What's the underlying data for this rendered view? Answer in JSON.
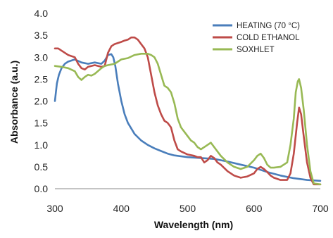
{
  "chart_data": {
    "type": "line",
    "title": "",
    "xlabel": "Wavelength (nm)",
    "ylabel": "Absorbance (a.u.)",
    "xlim": [
      300,
      700
    ],
    "ylim": [
      0,
      4.0
    ],
    "x_ticks": [
      300,
      400,
      500,
      600,
      700
    ],
    "y_ticks": [
      "0.0",
      "0.5",
      "1.0",
      "1.5",
      "2.0",
      "2.5",
      "3.0",
      "3.5",
      "4.0"
    ],
    "grid": false,
    "legend_position": "top-right",
    "series": [
      {
        "name": "HEATING (70 °C)",
        "color": "#4a7ebb",
        "points": [
          [
            300,
            2.0
          ],
          [
            303,
            2.4
          ],
          [
            306,
            2.6
          ],
          [
            310,
            2.75
          ],
          [
            315,
            2.85
          ],
          [
            320,
            2.9
          ],
          [
            330,
            2.95
          ],
          [
            340,
            2.88
          ],
          [
            350,
            2.85
          ],
          [
            360,
            2.88
          ],
          [
            370,
            2.85
          ],
          [
            375,
            2.92
          ],
          [
            380,
            3.05
          ],
          [
            385,
            3.07
          ],
          [
            388,
            3.0
          ],
          [
            391,
            2.8
          ],
          [
            395,
            2.4
          ],
          [
            400,
            2.0
          ],
          [
            405,
            1.7
          ],
          [
            410,
            1.5
          ],
          [
            420,
            1.25
          ],
          [
            430,
            1.1
          ],
          [
            440,
            1.0
          ],
          [
            450,
            0.92
          ],
          [
            460,
            0.86
          ],
          [
            470,
            0.8
          ],
          [
            480,
            0.76
          ],
          [
            500,
            0.72
          ],
          [
            520,
            0.7
          ],
          [
            540,
            0.68
          ],
          [
            560,
            0.62
          ],
          [
            580,
            0.55
          ],
          [
            600,
            0.48
          ],
          [
            620,
            0.38
          ],
          [
            640,
            0.3
          ],
          [
            660,
            0.24
          ],
          [
            680,
            0.2
          ],
          [
            700,
            0.18
          ]
        ]
      },
      {
        "name": "COLD ETHANOL",
        "color": "#be4b48",
        "points": [
          [
            300,
            3.2
          ],
          [
            305,
            3.2
          ],
          [
            310,
            3.15
          ],
          [
            320,
            3.05
          ],
          [
            330,
            3.0
          ],
          [
            335,
            2.85
          ],
          [
            340,
            2.75
          ],
          [
            345,
            2.72
          ],
          [
            350,
            2.78
          ],
          [
            360,
            2.82
          ],
          [
            370,
            2.78
          ],
          [
            375,
            2.8
          ],
          [
            380,
            3.1
          ],
          [
            385,
            3.25
          ],
          [
            390,
            3.3
          ],
          [
            400,
            3.35
          ],
          [
            405,
            3.38
          ],
          [
            410,
            3.4
          ],
          [
            415,
            3.45
          ],
          [
            420,
            3.45
          ],
          [
            425,
            3.4
          ],
          [
            430,
            3.3
          ],
          [
            435,
            3.2
          ],
          [
            440,
            3.0
          ],
          [
            445,
            2.6
          ],
          [
            450,
            2.2
          ],
          [
            455,
            1.9
          ],
          [
            460,
            1.7
          ],
          [
            465,
            1.55
          ],
          [
            470,
            1.5
          ],
          [
            475,
            1.4
          ],
          [
            480,
            1.1
          ],
          [
            485,
            0.9
          ],
          [
            490,
            0.85
          ],
          [
            500,
            0.78
          ],
          [
            510,
            0.75
          ],
          [
            515,
            0.72
          ],
          [
            520,
            0.72
          ],
          [
            525,
            0.6
          ],
          [
            530,
            0.65
          ],
          [
            535,
            0.75
          ],
          [
            540,
            0.7
          ],
          [
            545,
            0.6
          ],
          [
            550,
            0.55
          ],
          [
            560,
            0.4
          ],
          [
            570,
            0.3
          ],
          [
            580,
            0.25
          ],
          [
            590,
            0.28
          ],
          [
            600,
            0.35
          ],
          [
            605,
            0.45
          ],
          [
            610,
            0.5
          ],
          [
            615,
            0.45
          ],
          [
            620,
            0.38
          ],
          [
            625,
            0.3
          ],
          [
            630,
            0.25
          ],
          [
            640,
            0.2
          ],
          [
            650,
            0.2
          ],
          [
            655,
            0.35
          ],
          [
            660,
            0.8
          ],
          [
            665,
            1.5
          ],
          [
            668,
            1.85
          ],
          [
            671,
            1.7
          ],
          [
            675,
            1.2
          ],
          [
            680,
            0.6
          ],
          [
            685,
            0.25
          ],
          [
            690,
            0.1
          ],
          [
            700,
            0.1
          ]
        ]
      },
      {
        "name": "SOXHLET",
        "color": "#98b954",
        "points": [
          [
            300,
            2.8
          ],
          [
            310,
            2.78
          ],
          [
            320,
            2.75
          ],
          [
            330,
            2.68
          ],
          [
            335,
            2.55
          ],
          [
            340,
            2.48
          ],
          [
            345,
            2.55
          ],
          [
            350,
            2.6
          ],
          [
            355,
            2.58
          ],
          [
            360,
            2.62
          ],
          [
            370,
            2.75
          ],
          [
            375,
            2.8
          ],
          [
            380,
            2.82
          ],
          [
            390,
            2.85
          ],
          [
            400,
            2.95
          ],
          [
            410,
            2.98
          ],
          [
            420,
            3.05
          ],
          [
            430,
            3.08
          ],
          [
            440,
            3.08
          ],
          [
            445,
            3.05
          ],
          [
            450,
            3.0
          ],
          [
            455,
            2.85
          ],
          [
            460,
            2.6
          ],
          [
            465,
            2.35
          ],
          [
            470,
            2.3
          ],
          [
            475,
            2.2
          ],
          [
            480,
            1.95
          ],
          [
            485,
            1.6
          ],
          [
            490,
            1.4
          ],
          [
            500,
            1.2
          ],
          [
            505,
            1.1
          ],
          [
            510,
            1.05
          ],
          [
            515,
            0.95
          ],
          [
            520,
            0.9
          ],
          [
            525,
            0.95
          ],
          [
            530,
            1.0
          ],
          [
            535,
            1.05
          ],
          [
            540,
            0.95
          ],
          [
            545,
            0.85
          ],
          [
            550,
            0.75
          ],
          [
            560,
            0.6
          ],
          [
            570,
            0.5
          ],
          [
            580,
            0.45
          ],
          [
            590,
            0.5
          ],
          [
            600,
            0.65
          ],
          [
            605,
            0.75
          ],
          [
            610,
            0.8
          ],
          [
            615,
            0.7
          ],
          [
            620,
            0.55
          ],
          [
            625,
            0.48
          ],
          [
            630,
            0.48
          ],
          [
            640,
            0.5
          ],
          [
            650,
            0.6
          ],
          [
            655,
            1.0
          ],
          [
            660,
            1.6
          ],
          [
            663,
            2.2
          ],
          [
            666,
            2.45
          ],
          [
            668,
            2.5
          ],
          [
            671,
            2.3
          ],
          [
            675,
            1.8
          ],
          [
            680,
            1.0
          ],
          [
            685,
            0.4
          ],
          [
            690,
            0.12
          ],
          [
            700,
            0.1
          ]
        ]
      }
    ]
  }
}
